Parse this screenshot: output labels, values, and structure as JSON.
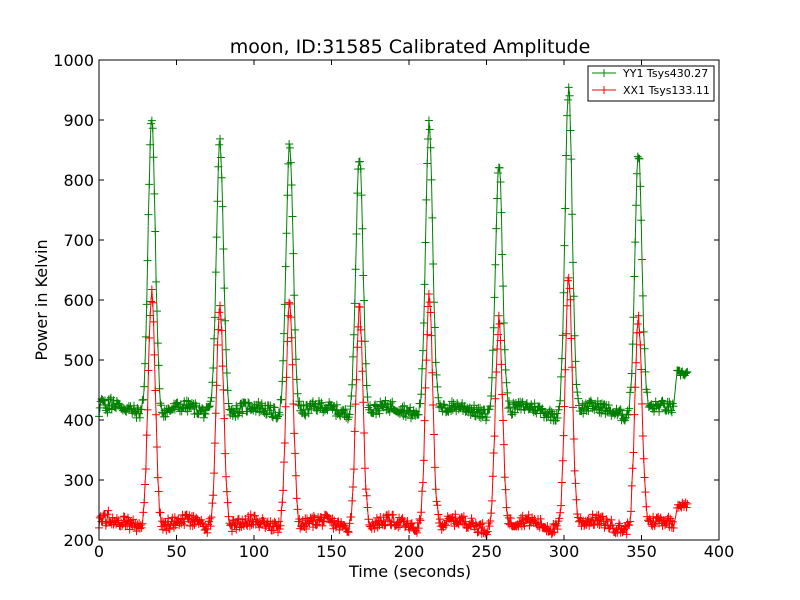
{
  "chart_data": {
    "type": "line",
    "title": "moon, ID:31585 Calibrated Amplitude",
    "xlabel": "Time (seconds)",
    "ylabel": "Power in Kelvin",
    "xlim": [
      0,
      400
    ],
    "ylim": [
      200,
      1000
    ],
    "xticks": [
      0,
      50,
      100,
      150,
      200,
      250,
      300,
      350,
      400
    ],
    "yticks": [
      200,
      300,
      400,
      500,
      600,
      700,
      800,
      900,
      1000
    ],
    "grid": false,
    "legend_position": "top-right",
    "marker": "+",
    "series": [
      {
        "name": "YY1 Tsys430.27",
        "color": "#008000",
        "baseline": 415,
        "peaks": [
          {
            "t": 34,
            "v": 910
          },
          {
            "t": 78,
            "v": 870
          },
          {
            "t": 123,
            "v": 865
          },
          {
            "t": 168,
            "v": 850
          },
          {
            "t": 213,
            "v": 905
          },
          {
            "t": 258,
            "v": 835
          },
          {
            "t": 303,
            "v": 960
          },
          {
            "t": 348,
            "v": 850
          }
        ],
        "end_segment": {
          "t_start": 373,
          "t_end": 380,
          "v": 478
        }
      },
      {
        "name": "XX1 Tsys133.11",
        "color": "#ff0000",
        "baseline": 225,
        "peaks": [
          {
            "t": 34,
            "v": 620
          },
          {
            "t": 78,
            "v": 600
          },
          {
            "t": 123,
            "v": 600
          },
          {
            "t": 168,
            "v": 590
          },
          {
            "t": 213,
            "v": 610
          },
          {
            "t": 258,
            "v": 570
          },
          {
            "t": 303,
            "v": 645
          },
          {
            "t": 348,
            "v": 570
          }
        ],
        "end_segment": {
          "t_start": 373,
          "t_end": 380,
          "v": 258
        }
      }
    ]
  }
}
